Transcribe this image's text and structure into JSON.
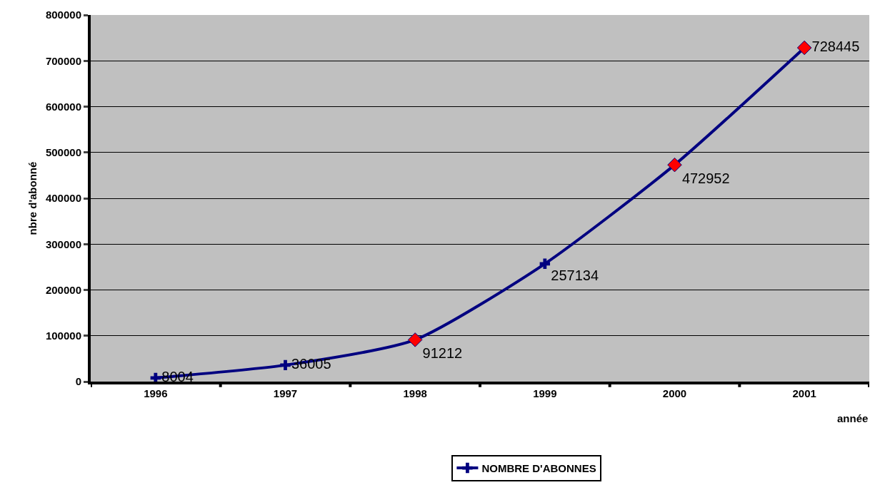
{
  "chart_data": {
    "type": "line",
    "xlabel": "année",
    "ylabel": "nbre d'abonné",
    "categories": [
      "1996",
      "1997",
      "1998",
      "1999",
      "2000",
      "2001"
    ],
    "series": [
      {
        "name": "NOMBRE D'ABONNES",
        "color": "#000080",
        "values": [
          8004,
          36005,
          91212,
          257134,
          472952,
          728445
        ],
        "marker": "cross",
        "value_labels": [
          "8004",
          "36005",
          null,
          "257134",
          null,
          null
        ]
      },
      {
        "type": "scatter",
        "color": "#ff0000",
        "values": [
          null,
          null,
          91212,
          null,
          472952,
          728445
        ],
        "marker": "diamond",
        "value_labels": [
          null,
          null,
          "91212",
          null,
          "472952",
          "728445"
        ]
      }
    ],
    "ylim": [
      0,
      800000
    ],
    "yticks": [
      0,
      100000,
      200000,
      300000,
      400000,
      500000,
      600000,
      700000,
      800000
    ],
    "grid": "y",
    "legend": "bottom",
    "line_style": "solid"
  }
}
